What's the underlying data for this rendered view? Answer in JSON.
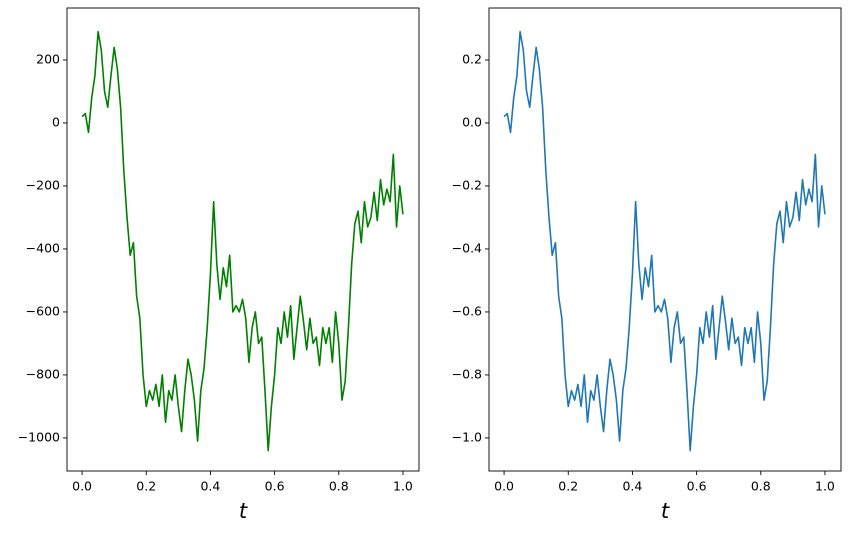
{
  "chart_data": [
    {
      "type": "line",
      "x_label": "t",
      "color": "#008000",
      "x": [
        0,
        0.01,
        0.02,
        0.03,
        0.04,
        0.05,
        0.06,
        0.07,
        0.08,
        0.09,
        0.1,
        0.11,
        0.12,
        0.13,
        0.14,
        0.15,
        0.16,
        0.17,
        0.18,
        0.19,
        0.2,
        0.21,
        0.22,
        0.23,
        0.24,
        0.25,
        0.26,
        0.27,
        0.28,
        0.29,
        0.3,
        0.31,
        0.32,
        0.33,
        0.34,
        0.35,
        0.36,
        0.37,
        0.38,
        0.39,
        0.4,
        0.41,
        0.42,
        0.43,
        0.44,
        0.45,
        0.46,
        0.47,
        0.48,
        0.49,
        0.5,
        0.51,
        0.52,
        0.53,
        0.54,
        0.55,
        0.56,
        0.57,
        0.58,
        0.59,
        0.6,
        0.61,
        0.62,
        0.63,
        0.64,
        0.65,
        0.66,
        0.67,
        0.68,
        0.69,
        0.7,
        0.71,
        0.72,
        0.73,
        0.74,
        0.75,
        0.76,
        0.77,
        0.78,
        0.79,
        0.8,
        0.81,
        0.82,
        0.83,
        0.84,
        0.85,
        0.86,
        0.87,
        0.88,
        0.89,
        0.9,
        0.91,
        0.92,
        0.93,
        0.94,
        0.95,
        0.96,
        0.97,
        0.98,
        0.99,
        1
      ],
      "values": [
        20,
        30,
        -30,
        80,
        150,
        290,
        230,
        100,
        50,
        150,
        240,
        170,
        50,
        -150,
        -300,
        -420,
        -380,
        -550,
        -620,
        -800,
        -900,
        -850,
        -880,
        -830,
        -900,
        -800,
        -950,
        -850,
        -880,
        -800,
        -900,
        -980,
        -850,
        -750,
        -800,
        -880,
        -1010,
        -850,
        -780,
        -650,
        -480,
        -250,
        -450,
        -560,
        -460,
        -520,
        -420,
        -600,
        -580,
        -600,
        -560,
        -620,
        -760,
        -650,
        -600,
        -700,
        -680,
        -850,
        -1040,
        -900,
        -800,
        -650,
        -700,
        -600,
        -680,
        -580,
        -750,
        -650,
        -550,
        -630,
        -720,
        -620,
        -700,
        -680,
        -770,
        -650,
        -700,
        -650,
        -760,
        -600,
        -700,
        -880,
        -820,
        -650,
        -450,
        -320,
        -280,
        -380,
        -250,
        -330,
        -300,
        -220,
        -310,
        -180,
        -260,
        -210,
        -250,
        -100,
        -330,
        -200,
        -290
      ],
      "xlim": [
        -0.047,
        1.05
      ],
      "xticks": [
        {
          "value": 0,
          "label": "0.0"
        },
        0.2,
        0.4,
        0.6,
        0.8,
        {
          "value": 1,
          "label": "1.0"
        }
      ],
      "ylim": [
        -1105,
        365
      ],
      "yticks": [
        {
          "value": -1000,
          "label": "−1000"
        },
        {
          "value": -800,
          "label": "−800"
        },
        {
          "value": -600,
          "label": "−600"
        },
        {
          "value": -400,
          "label": "−400"
        },
        {
          "value": -200,
          "label": "−200"
        },
        0,
        200
      ]
    },
    {
      "type": "line",
      "x_label": "t",
      "color": "#1f77b4",
      "x": [
        0,
        0.01,
        0.02,
        0.03,
        0.04,
        0.05,
        0.06,
        0.07,
        0.08,
        0.09,
        0.1,
        0.11,
        0.12,
        0.13,
        0.14,
        0.15,
        0.16,
        0.17,
        0.18,
        0.19,
        0.2,
        0.21,
        0.22,
        0.23,
        0.24,
        0.25,
        0.26,
        0.27,
        0.28,
        0.29,
        0.3,
        0.31,
        0.32,
        0.33,
        0.34,
        0.35,
        0.36,
        0.37,
        0.38,
        0.39,
        0.4,
        0.41,
        0.42,
        0.43,
        0.44,
        0.45,
        0.46,
        0.47,
        0.48,
        0.49,
        0.5,
        0.51,
        0.52,
        0.53,
        0.54,
        0.55,
        0.56,
        0.57,
        0.58,
        0.59,
        0.6,
        0.61,
        0.62,
        0.63,
        0.64,
        0.65,
        0.66,
        0.67,
        0.68,
        0.69,
        0.7,
        0.71,
        0.72,
        0.73,
        0.74,
        0.75,
        0.76,
        0.77,
        0.78,
        0.79,
        0.8,
        0.81,
        0.82,
        0.83,
        0.84,
        0.85,
        0.86,
        0.87,
        0.88,
        0.89,
        0.9,
        0.91,
        0.92,
        0.93,
        0.94,
        0.95,
        0.96,
        0.97,
        0.98,
        0.99,
        1
      ],
      "values": [
        0.02,
        0.03,
        -0.03,
        0.08,
        0.15,
        0.29,
        0.23,
        0.1,
        0.05,
        0.15,
        0.24,
        0.17,
        0.05,
        -0.15,
        -0.3,
        -0.42,
        -0.38,
        -0.55,
        -0.62,
        -0.8,
        -0.9,
        -0.85,
        -0.88,
        -0.83,
        -0.9,
        -0.8,
        -0.95,
        -0.85,
        -0.88,
        -0.8,
        -0.9,
        -0.98,
        -0.85,
        -0.75,
        -0.8,
        -0.88,
        -1.01,
        -0.85,
        -0.78,
        -0.65,
        -0.48,
        -0.25,
        -0.45,
        -0.56,
        -0.46,
        -0.52,
        -0.42,
        -0.6,
        -0.58,
        -0.6,
        -0.56,
        -0.62,
        -0.76,
        -0.65,
        -0.6,
        -0.7,
        -0.68,
        -0.85,
        -1.04,
        -0.9,
        -0.8,
        -0.65,
        -0.7,
        -0.6,
        -0.68,
        -0.58,
        -0.75,
        -0.65,
        -0.55,
        -0.63,
        -0.72,
        -0.62,
        -0.7,
        -0.68,
        -0.77,
        -0.65,
        -0.7,
        -0.65,
        -0.76,
        -0.6,
        -0.7,
        -0.88,
        -0.82,
        -0.65,
        -0.45,
        -0.32,
        -0.28,
        -0.38,
        -0.25,
        -0.33,
        -0.3,
        -0.22,
        -0.31,
        -0.18,
        -0.26,
        -0.21,
        -0.25,
        -0.1,
        -0.33,
        -0.2,
        -0.29
      ],
      "xlim": [
        -0.047,
        1.05
      ],
      "xticks": [
        {
          "value": 0,
          "label": "0.0"
        },
        0.2,
        0.4,
        0.6,
        0.8,
        {
          "value": 1,
          "label": "1.0"
        }
      ],
      "ylim": [
        -1.105,
        0.365
      ],
      "yticks": [
        {
          "value": -1,
          "label": "−1.0"
        },
        {
          "value": -0.8,
          "label": "−0.8"
        },
        {
          "value": -0.6,
          "label": "−0.6"
        },
        {
          "value": -0.4,
          "label": "−0.4"
        },
        {
          "value": -0.2,
          "label": "−0.2"
        },
        {
          "value": 0,
          "label": "0.0"
        },
        0.2
      ]
    }
  ]
}
